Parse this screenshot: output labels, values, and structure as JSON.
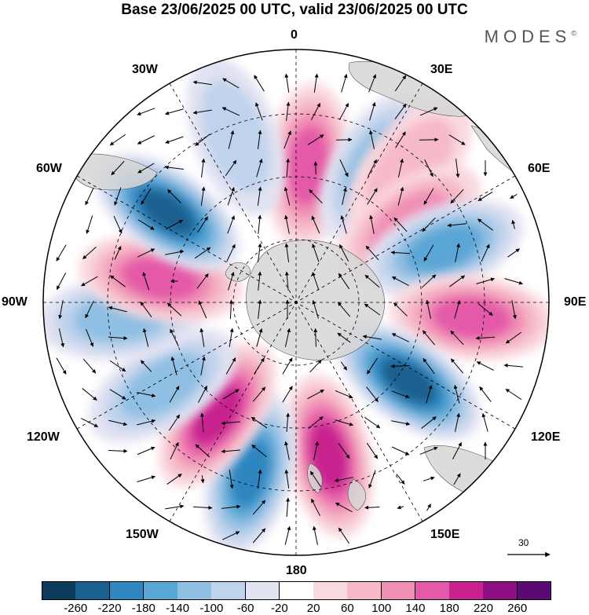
{
  "title": "Base 23/06/2025 00 UTC, valid 23/06/2025 00 UTC",
  "brand": "MODES",
  "brand_mark": "©",
  "longitude_labels": {
    "top": "0",
    "bottom": "180",
    "left": "90W",
    "right": "90E",
    "nw30": "30W",
    "nw60": "60W",
    "ne30": "30E",
    "ne60": "60E",
    "sw120": "120W",
    "sw150": "150W",
    "se120": "120E",
    "se150": "150E"
  },
  "vector_scale_label": "30",
  "colorbar": {
    "labels": [
      "-260",
      "-220",
      "-180",
      "-140",
      "-100",
      "-60",
      "-20",
      "20",
      "60",
      "100",
      "140",
      "180",
      "220",
      "260"
    ],
    "colors": [
      "#0e3b5c",
      "#1a6190",
      "#2f86c0",
      "#5aa6d6",
      "#8fbfe3",
      "#c0d3ec",
      "#e1e2f2",
      "#ffffff",
      "#f9d9df",
      "#f6b9c8",
      "#f08fb5",
      "#e45aa8",
      "#c8228f",
      "#8e0f83",
      "#5a0a72"
    ]
  },
  "chart_data": {
    "type": "heatmap",
    "title": "Base 23/06/2025 00 UTC, valid 23/06/2025 00 UTC",
    "projection": "south-polar-stereographic",
    "meridian_labels": [
      "0",
      "30E",
      "60E",
      "90E",
      "120E",
      "150E",
      "180",
      "150W",
      "120W",
      "90W",
      "60W",
      "30W"
    ],
    "contour_levels": [
      -260,
      -220,
      -180,
      -140,
      -100,
      -60,
      -20,
      20,
      60,
      100,
      140,
      180,
      220,
      260
    ],
    "vector_reference": 30,
    "grid": true,
    "anomaly_centers": [
      {
        "lon": 5,
        "sign": "positive",
        "peak": 160
      },
      {
        "lon": 30,
        "sign": "negative",
        "peak": -120
      },
      {
        "lon": 40,
        "sign": "positive",
        "peak": 100
      },
      {
        "lon": 55,
        "sign": "positive",
        "peak": 150
      },
      {
        "lon": 70,
        "sign": "negative",
        "peak": -170
      },
      {
        "lon": 95,
        "sign": "positive",
        "peak": 180
      },
      {
        "lon": 125,
        "sign": "negative",
        "peak": -260
      },
      {
        "lon": 168,
        "sign": "positive",
        "peak": 230
      },
      {
        "lon": -165,
        "sign": "negative",
        "peak": -200
      },
      {
        "lon": -145,
        "sign": "positive",
        "peak": 200
      },
      {
        "lon": -122,
        "sign": "negative",
        "peak": -150
      },
      {
        "lon": -95,
        "sign": "negative",
        "peak": -120
      },
      {
        "lon": -80,
        "sign": "positive",
        "peak": 170
      },
      {
        "lon": -55,
        "sign": "negative",
        "peak": -240
      },
      {
        "lon": -20,
        "sign": "negative",
        "peak": -90
      }
    ]
  }
}
